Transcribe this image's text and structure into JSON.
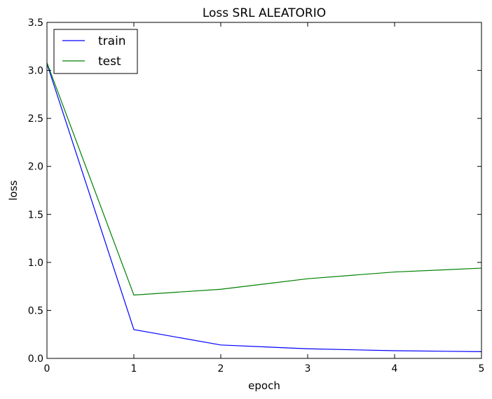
{
  "chart_data": {
    "type": "line",
    "title": "Loss SRL ALEATORIO",
    "xlabel": "epoch",
    "ylabel": "loss",
    "x": [
      0,
      1,
      2,
      3,
      4,
      5
    ],
    "xlim": [
      0,
      5
    ],
    "ylim": [
      0.0,
      3.5
    ],
    "xticks": [
      "0",
      "1",
      "2",
      "3",
      "4",
      "5"
    ],
    "yticks": [
      "0.0",
      "0.5",
      "1.0",
      "1.5",
      "2.0",
      "2.5",
      "3.0",
      "3.5"
    ],
    "grid": false,
    "legend_position": "top-left",
    "series": [
      {
        "name": "train",
        "color": "#0000ff",
        "values": [
          3.07,
          0.3,
          0.14,
          0.1,
          0.08,
          0.07
        ]
      },
      {
        "name": "test",
        "color": "#008000",
        "values": [
          3.08,
          0.66,
          0.72,
          0.83,
          0.9,
          0.94
        ]
      }
    ]
  }
}
